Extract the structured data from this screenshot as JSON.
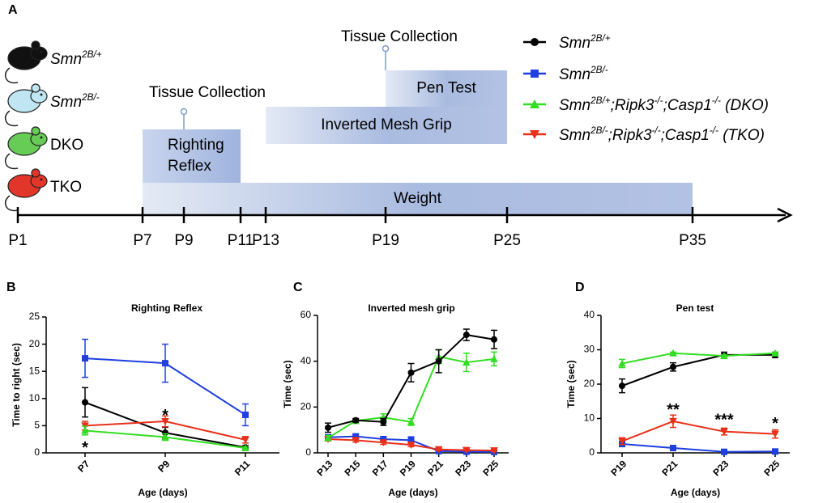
{
  "panel_a": {
    "label": "A",
    "mice": [
      [
        {
          "text": "Smn",
          "italic": true
        },
        {
          "text": "2B/+",
          "italic": true,
          "sup": true
        }
      ],
      [
        {
          "text": "Smn",
          "italic": true
        },
        {
          "text": "2B/-",
          "italic": true,
          "sup": true
        }
      ],
      [
        {
          "text": "DKO"
        }
      ],
      [
        {
          "text": "TKO"
        }
      ]
    ],
    "days": [
      "P1",
      "P7",
      "P9",
      "P11",
      "P13",
      "P19",
      "P25",
      "P35"
    ],
    "events": [
      {
        "lines": [
          "Weight"
        ]
      },
      {
        "lines": [
          "Righting",
          "Reflex"
        ]
      },
      {
        "lines": [
          "Inverted Mesh Grip"
        ]
      },
      {
        "lines": [
          "Pen Test"
        ]
      }
    ],
    "annotations": [
      "Tissue Collection",
      "Tissue Collection"
    ]
  },
  "legend": [
    {
      "color": "#000000",
      "marker": "circle",
      "name": [
        {
          "text": "Smn"
        },
        {
          "text": "2B/+",
          "sup": true
        }
      ]
    },
    {
      "color": "#1f3fe0",
      "marker": "square",
      "name": [
        {
          "text": "Smn"
        },
        {
          "text": "2B/-",
          "sup": true
        }
      ]
    },
    {
      "color": "#33dd22",
      "marker": "triangle",
      "name": [
        {
          "text": "Smn"
        },
        {
          "text": "2B/+",
          "sup": true
        },
        {
          "text": ";Ripk3"
        },
        {
          "text": "-/-",
          "sup": true
        },
        {
          "text": ";Casp1"
        },
        {
          "text": "-/-",
          "sup": true
        },
        {
          "text": " (DKO)"
        }
      ]
    },
    {
      "color": "#e8301a",
      "marker": "triangle-down",
      "name": [
        {
          "text": "Smn"
        },
        {
          "text": "2B/-",
          "sup": true
        },
        {
          "text": ";Ripk3"
        },
        {
          "text": "-/-",
          "sup": true
        },
        {
          "text": ";Casp1"
        },
        {
          "text": "-/-",
          "sup": true
        },
        {
          "text": " (TKO)"
        }
      ]
    }
  ],
  "chart_data": [
    {
      "type": "line",
      "panel": "B",
      "title": "Righting Reflex",
      "xlabel": "Age (days)",
      "ylabel": "Time to right (sec)",
      "categories": [
        "P7",
        "P9",
        "P11"
      ],
      "ylim": [
        0,
        25
      ],
      "yticks": [
        0,
        5,
        10,
        15,
        20,
        25
      ],
      "series": [
        {
          "color": "#1f3fe0",
          "marker": "square",
          "values": [
            17.4,
            16.5,
            7.0
          ],
          "errors": [
            3.5,
            3.5,
            2.0
          ]
        },
        {
          "color": "#000000",
          "marker": "circle",
          "values": [
            9.3,
            3.7,
            1.0
          ],
          "errors": [
            2.7,
            1.0,
            0.3
          ]
        },
        {
          "color": "#e8301a",
          "marker": "triangle-down",
          "values": [
            5.0,
            5.8,
            2.4
          ],
          "errors": [
            0.8,
            1.0,
            0.6
          ]
        },
        {
          "color": "#33dd22",
          "marker": "triangle",
          "values": [
            4.1,
            2.9,
            0.9
          ],
          "errors": [
            0.8,
            0.6,
            0.2
          ]
        }
      ],
      "annotations": [
        {
          "text": "*",
          "x": 0,
          "y": 1.5
        },
        {
          "text": "*",
          "x": 1,
          "y": 7.5
        }
      ]
    },
    {
      "type": "line",
      "panel": "C",
      "title": "Inverted mesh grip",
      "xlabel": "Age (days)",
      "ylabel": "Time (sec)",
      "categories": [
        "P13",
        "P15",
        "P17",
        "P19",
        "P21",
        "P23",
        "P25"
      ],
      "ylim": [
        0,
        60
      ],
      "yticks": [
        0,
        20,
        40,
        60
      ],
      "series": [
        {
          "color": "#1f3fe0",
          "marker": "square",
          "values": [
            6.8,
            7.2,
            6.0,
            5.5,
            0.8,
            0.5,
            0.4
          ],
          "errors": [
            1.0,
            1.0,
            1.0,
            1.5,
            0.5,
            0.3,
            0.3
          ]
        },
        {
          "color": "#e8301a",
          "marker": "triangle-down",
          "values": [
            6.0,
            5.5,
            4.5,
            3.5,
            1.5,
            1.2,
            1.0
          ],
          "errors": [
            0.8,
            0.8,
            0.8,
            0.8,
            0.5,
            0.4,
            0.4
          ]
        },
        {
          "color": "#33dd22",
          "marker": "triangle",
          "values": [
            6.5,
            14.0,
            15.5,
            13.5,
            42.0,
            39.5,
            41.0
          ],
          "errors": [
            1.0,
            0.5,
            1.5,
            1.5,
            3.0,
            4.0,
            3.0
          ]
        },
        {
          "color": "#000000",
          "marker": "circle",
          "values": [
            11.0,
            14.2,
            13.5,
            35.0,
            40.0,
            51.5,
            49.5
          ],
          "errors": [
            2.0,
            0.8,
            1.5,
            4.0,
            5.0,
            2.5,
            4.0
          ]
        }
      ],
      "annotations": []
    },
    {
      "type": "line",
      "panel": "D",
      "title": "Pen test",
      "xlabel": "Age (days)",
      "ylabel": "Time (sec)",
      "categories": [
        "P19",
        "P21",
        "P23",
        "P25"
      ],
      "ylim": [
        0,
        40
      ],
      "yticks": [
        0,
        10,
        20,
        30,
        40
      ],
      "series": [
        {
          "color": "#1f3fe0",
          "marker": "square",
          "values": [
            2.6,
            1.4,
            0.3,
            0.4
          ],
          "errors": [
            0.8,
            0.3,
            0.2,
            0.2
          ]
        },
        {
          "color": "#e8301a",
          "marker": "triangle-down",
          "values": [
            3.4,
            9.2,
            6.2,
            5.5
          ],
          "errors": [
            1.0,
            1.8,
            1.0,
            1.2
          ]
        },
        {
          "color": "#000000",
          "marker": "circle",
          "values": [
            19.5,
            25.0,
            28.5,
            28.5
          ],
          "errors": [
            2.0,
            1.2,
            0.8,
            0.8
          ]
        },
        {
          "color": "#33dd22",
          "marker": "triangle",
          "values": [
            26.0,
            29.0,
            28.2,
            29.0
          ],
          "errors": [
            1.2,
            0.3,
            0.3,
            0.3
          ]
        }
      ],
      "annotations": [
        {
          "text": "**",
          "x": 1,
          "y": 13.5
        },
        {
          "text": "***",
          "x": 2,
          "y": 10.5
        },
        {
          "text": "*",
          "x": 3,
          "y": 9.5
        }
      ]
    }
  ]
}
